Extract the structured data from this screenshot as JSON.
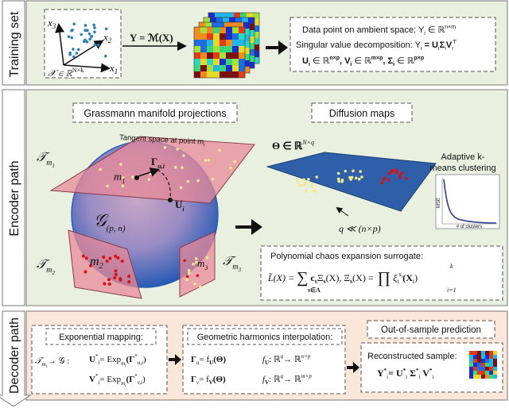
{
  "sections": {
    "training": {
      "label": "Training set",
      "fill": "#e9f0df"
    },
    "encoder": {
      "label": "Encoder path",
      "fill": "#e9f0df"
    },
    "decoder": {
      "label": "Decoder path",
      "fill": "#fbe6da"
    }
  },
  "training": {
    "scatter_x1": "x",
    "scatter_x2": "x",
    "scatter_x3": "x",
    "scatter_domain": "𝒳 ∈ ℝ",
    "scatter_domain_sup": "N×k",
    "mapping": "Y = ℳ(X)",
    "box_lines": {
      "l1": "Data point on ambient space: Y",
      "l1_math": "∈ ℝ",
      "l1_sup": "n×m",
      "l2": "Singular value decomposition: Y",
      "l2_math": "= U",
      "l2_sup": "T",
      "l3a": "U",
      "l3b": "∈ ℝ",
      "l3c": "n×p",
      "l3d": ", V",
      "l3e": "m×p",
      "l3f": ", Σ",
      "l3g": "p×p"
    }
  },
  "encoder": {
    "grassmann_title": "Grassmann manifold projections",
    "diffusion_title": "Diffusion maps",
    "tangent_label": "Tangent space at point m",
    "tangent_sub": "i",
    "T_m1": "𝒯",
    "T_m2": "𝒯",
    "T_m3": "𝒯",
    "sub_m1": "m",
    "m1": "m",
    "m2": "m",
    "m3": "m",
    "gamma": "Γ",
    "gamma_sub": "u,i",
    "Ui": "U",
    "Ui_sub": "i",
    "G": "𝒢",
    "G_sub": "(p, n)",
    "theta": "Θ ∈ ℝ",
    "theta_sup": "N×q",
    "q_label": "q  ≪ (n×p)",
    "adaptive_title_1": "Adaptive k-",
    "adaptive_title_2": "means clustering",
    "mse_label": "MSE",
    "clusters_label": "# of clusters",
    "pce_title": "Polynomial chaos expansion surrogate:",
    "pce_lhs": "L̃(X) = ",
    "pce_sum_sub": "s∈Λ",
    "pce_sum_sup": "",
    "pce_term": "c",
    "pce_term2": "Ξ",
    "pce_xi": "(X),",
    "pce_xi_def": "Ξ",
    "pce_xi_def2": "(X) =",
    "pce_prod_sub": "i=1",
    "pce_prod_sup": "k",
    "pce_zeta": "ξ",
    "pce_zeta_arg": "(X",
    "pce_zeta_close": ")"
  },
  "decoder": {
    "exp_title": "Exponential mapping:",
    "exp_lhs": "𝒯",
    "exp_lhs2": "→ 𝒢 :",
    "exp_u": "U",
    "exp_u_rhs": "= Exp",
    "exp_u_arg": "(Γ",
    "exp_u_close": ")",
    "exp_v": "V",
    "geo_title": "Geometric harmonics interpolation:",
    "geo_gu": "Γ",
    "geo_gu_rhs": "= f",
    "geo_theta": "(Θ)",
    "geo_fu": "f",
    "geo_map": ": ℝ",
    "geo_arrow": "→ ℝ",
    "geo_np": "n×p",
    "geo_mp": "m×p",
    "geo_q": "q",
    "oos_title": "Out-of-sample prediction",
    "recon_title": "Reconstructed sample:",
    "recon_eq": "Y",
    "recon_eq2": "= U",
    "recon_sigma": "Σ",
    "recon_v": "V"
  },
  "colors": {
    "arrow": "#111111",
    "plane_pink": "#e88a98",
    "plane_blue": "#2f5fa8",
    "sphere_center": "#c1a2c8",
    "sphere_edge": "#2a5cb5",
    "dot_yellow": "#f1e890",
    "dot_red": "#e01010"
  }
}
